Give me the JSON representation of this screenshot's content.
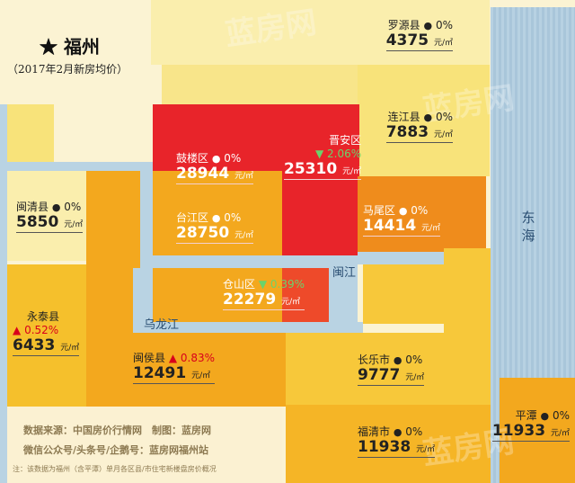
{
  "title": "★ 福州",
  "subtitle": "（2017年2月新房均价）",
  "unit": "元/㎡",
  "sea_label_1": "东",
  "sea_label_2": "海",
  "river_min": "闽江",
  "river_wulong": "乌龙江",
  "footnotes": {
    "line1": "数据来源：中国房价行情网　制图：蓝房网",
    "line2": "微信公众号/头条号/企鹅号：蓝房网福州站",
    "line3": "注：该数据为福州（含平潭）单月各区县/市住宅新楼盘房价概况"
  },
  "watermark": "蓝房网",
  "districts": [
    {
      "id": "luoyuan",
      "name": "罗源县",
      "marker": "●",
      "change": "0%",
      "price": "4375",
      "trend": "flat"
    },
    {
      "id": "lianjiang",
      "name": "连江县",
      "marker": "●",
      "change": "0%",
      "price": "7883",
      "trend": "flat"
    },
    {
      "id": "minqing",
      "name": "闽清县",
      "marker": "●",
      "change": "0%",
      "price": "5850",
      "trend": "flat"
    },
    {
      "id": "gulou",
      "name": "鼓楼区",
      "marker": "●",
      "change": "0%",
      "price": "28944",
      "trend": "flat"
    },
    {
      "id": "jinan",
      "name": "晋安区",
      "marker": "▼",
      "change": "2.06%",
      "price": "25310",
      "trend": "down"
    },
    {
      "id": "taijiang",
      "name": "台江区",
      "marker": "●",
      "change": "0%",
      "price": "28750",
      "trend": "flat"
    },
    {
      "id": "mawei",
      "name": "马尾区",
      "marker": "●",
      "change": "0%",
      "price": "14414",
      "trend": "flat"
    },
    {
      "id": "cangshan",
      "name": "仓山区",
      "marker": "▼",
      "change": "0.39%",
      "price": "22279",
      "trend": "down"
    },
    {
      "id": "yongtai",
      "name": "永泰县",
      "marker": "▲",
      "change": "0.52%",
      "price": "6433",
      "trend": "up"
    },
    {
      "id": "minhou",
      "name": "闽侯县",
      "marker": "▲",
      "change": "0.83%",
      "price": "12491",
      "trend": "up"
    },
    {
      "id": "changle",
      "name": "长乐市",
      "marker": "●",
      "change": "0%",
      "price": "9777",
      "trend": "flat"
    },
    {
      "id": "fuqing",
      "name": "福清市",
      "marker": "●",
      "change": "0%",
      "price": "11938",
      "trend": "flat"
    },
    {
      "id": "pingtan",
      "name": "平潭",
      "marker": "●",
      "change": "0%",
      "price": "11933",
      "trend": "flat"
    }
  ],
  "colors": {
    "highest": "#8f0f16",
    "very_high": "#e8242a",
    "high": "#ee4a2a",
    "mid_high": "#ef8c1c",
    "mid": "#f3a81e",
    "mid_low": "#f5c02c",
    "low": "#f8df72",
    "lowest": "#f9ecab",
    "water": "#b9d3e3",
    "sea": "#a9c6da",
    "up": "#d9001b",
    "down": "#2f9b2f"
  }
}
